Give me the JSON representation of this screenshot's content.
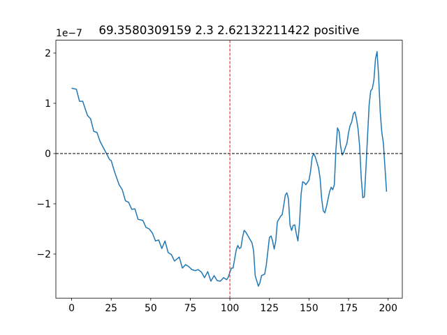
{
  "chart_data": {
    "type": "line",
    "title": "69.3580309159 2.3 2.62132211422 positive",
    "y_offset_label": "1e−7",
    "x": [
      0,
      3,
      5,
      7,
      10,
      12,
      14,
      16,
      18,
      22,
      24,
      25,
      27,
      30,
      32,
      34,
      36,
      38,
      40,
      42,
      45,
      47,
      49,
      51,
      53,
      55,
      57,
      59,
      61,
      63,
      65,
      68,
      70,
      72,
      74,
      76,
      78,
      80,
      82,
      84,
      86,
      88,
      90,
      92,
      94,
      96,
      98,
      99,
      100,
      101,
      102,
      104,
      105,
      106,
      107,
      108,
      109,
      110,
      112,
      114,
      115,
      116,
      118,
      119,
      120,
      122,
      123,
      125,
      126,
      127,
      128,
      129,
      130,
      132,
      133,
      134,
      135,
      136,
      137,
      138,
      139,
      140,
      141,
      142,
      143,
      144,
      145,
      146,
      147,
      148,
      150,
      151,
      152,
      153,
      154,
      156,
      157,
      158,
      159,
      160,
      161,
      163,
      164,
      165,
      166,
      167,
      168,
      169,
      170,
      171,
      172,
      174,
      175,
      176,
      177,
      178,
      179,
      180,
      181,
      182,
      183,
      184,
      185,
      186,
      187,
      188,
      189,
      190,
      191,
      192,
      193,
      194,
      195,
      196,
      197,
      198,
      199
    ],
    "series": [
      {
        "color": "#1f77b4",
        "values": [
          1.3,
          1.28,
          1.04,
          1.04,
          0.76,
          0.69,
          0.44,
          0.42,
          0.24,
          0,
          -0.12,
          -0.14,
          -0.35,
          -0.62,
          -0.72,
          -0.94,
          -0.97,
          -1.11,
          -1.1,
          -1.31,
          -1.33,
          -1.47,
          -1.5,
          -1.58,
          -1.74,
          -1.72,
          -1.89,
          -1.74,
          -1.97,
          -2.01,
          -2.14,
          -2.06,
          -2.28,
          -2.21,
          -2.25,
          -2.31,
          -2.33,
          -2.31,
          -2.36,
          -2.47,
          -2.35,
          -2.54,
          -2.43,
          -2.53,
          -2.54,
          -2.47,
          -2.51,
          -2.46,
          -2.36,
          -2.28,
          -2.28,
          -1.92,
          -1.83,
          -1.89,
          -1.87,
          -1.67,
          -1.53,
          -1.56,
          -1.67,
          -1.78,
          -1.94,
          -2.43,
          -2.64,
          -2.57,
          -2.43,
          -2.4,
          -2.22,
          -1.67,
          -1.64,
          -1.74,
          -1.9,
          -1.74,
          -1.36,
          -1.25,
          -1.22,
          -1.04,
          -0.83,
          -0.78,
          -0.9,
          -1.42,
          -1.53,
          -1.43,
          -1.42,
          -1.6,
          -1.74,
          -1.39,
          -0.81,
          -0.56,
          -0.58,
          -0.62,
          -0.53,
          -0.35,
          -0.07,
          0,
          -0.07,
          -0.28,
          -0.49,
          -0.9,
          -1.14,
          -1.18,
          -1.06,
          -0.76,
          -0.67,
          -0.72,
          -0.62,
          0.07,
          0.51,
          0.44,
          0.14,
          -0.03,
          0.03,
          0.21,
          0.42,
          0.56,
          0.63,
          0.79,
          0.83,
          0.69,
          0.49,
          0.14,
          -0.49,
          -0.88,
          -0.86,
          -0.28,
          0.35,
          0.97,
          1.25,
          1.29,
          1.46,
          1.88,
          2.03,
          1.53,
          0.83,
          0.42,
          0.21,
          -0.28,
          -0.76
        ]
      }
    ],
    "xlim": [
      -9.95,
      208.95
    ],
    "xticks": [
      0,
      25,
      50,
      75,
      100,
      125,
      150,
      175,
      200
    ],
    "ylim": [
      -2.878,
      2.256
    ],
    "yticks": [
      -2,
      -1,
      0,
      1,
      2
    ],
    "hline": {
      "value": 0,
      "color": "#000000"
    },
    "vline": {
      "value": 100,
      "color": "#ff0000"
    }
  }
}
